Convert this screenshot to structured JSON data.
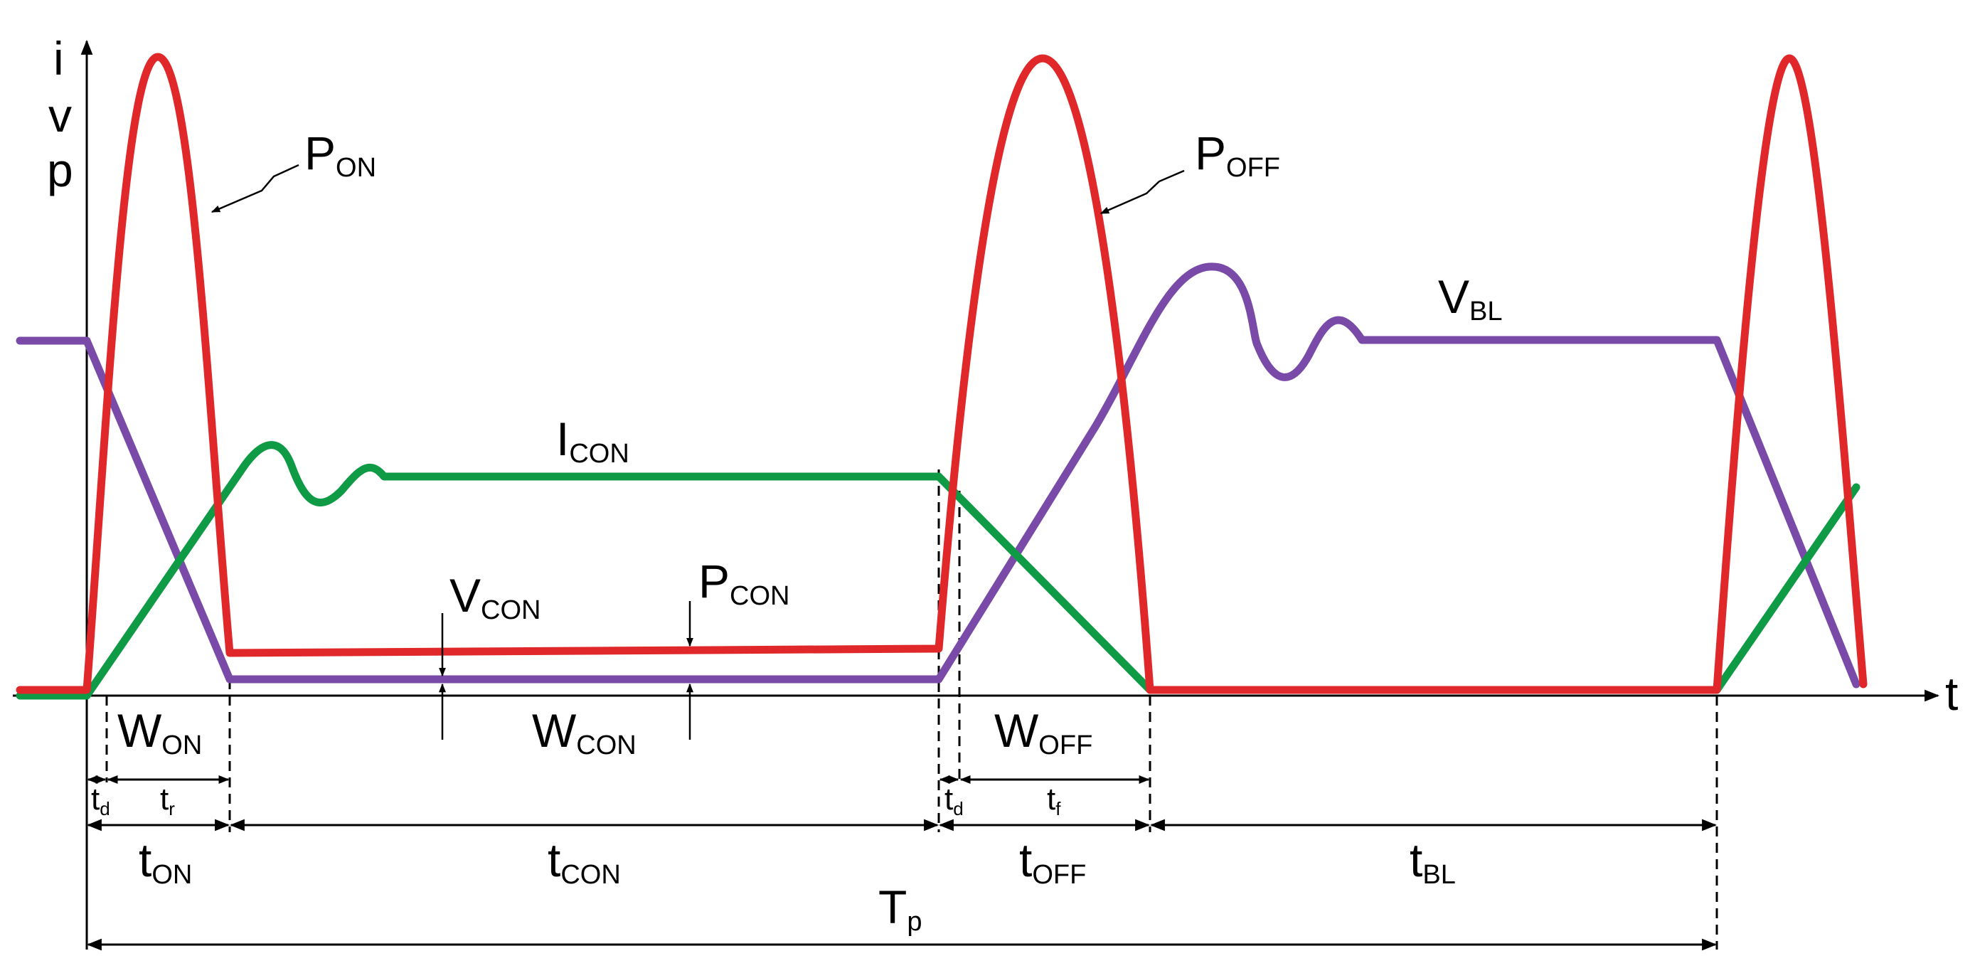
{
  "axis": {
    "y_labels": [
      "i",
      "v",
      "p"
    ],
    "x_label": "t"
  },
  "colors": {
    "power": "#e0282a",
    "current": "#0f9a45",
    "voltage": "#7a4aa8"
  },
  "curves": {
    "p_on": {
      "main": "P",
      "sub": "ON"
    },
    "p_off": {
      "main": "P",
      "sub": "OFF"
    },
    "v_bl": {
      "main": "V",
      "sub": "BL"
    },
    "i_con": {
      "main": "I",
      "sub": "CON"
    },
    "v_con": {
      "main": "V",
      "sub": "CON"
    },
    "p_con": {
      "main": "P",
      "sub": "CON"
    }
  },
  "energies": {
    "w_on": {
      "main": "W",
      "sub": "ON"
    },
    "w_con": {
      "main": "W",
      "sub": "CON"
    },
    "w_off": {
      "main": "W",
      "sub": "OFF"
    }
  },
  "intervals": {
    "td_on": {
      "main": "t",
      "sub": "d"
    },
    "tr": {
      "main": "t",
      "sub": "r"
    },
    "td_off": {
      "main": "t",
      "sub": "d"
    },
    "tf": {
      "main": "t",
      "sub": "f"
    },
    "t_on": {
      "main": "t",
      "sub": "ON"
    },
    "t_con": {
      "main": "t",
      "sub": "CON"
    },
    "t_off": {
      "main": "t",
      "sub": "OFF"
    },
    "t_bl": {
      "main": "t",
      "sub": "BL"
    },
    "t_p": {
      "main": "T",
      "sub": "p"
    }
  }
}
